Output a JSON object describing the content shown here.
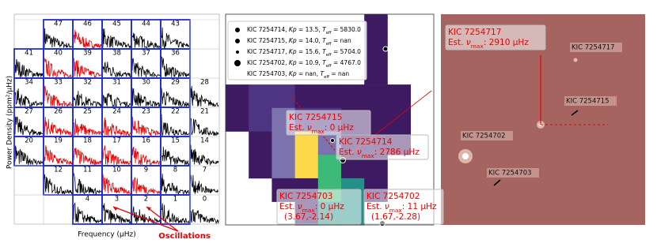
{
  "left": {
    "rows": [
      [
        null,
        "47",
        "46",
        "45",
        "44",
        "43",
        null
      ],
      [
        "41",
        "40",
        "39",
        "38",
        "37",
        "36",
        null
      ],
      [
        "34",
        "33",
        "32",
        "31",
        "30",
        "29",
        "28"
      ],
      [
        "27",
        "26",
        "25",
        "24",
        "23",
        "22",
        "21"
      ],
      [
        "20",
        "19",
        "18",
        "17",
        "16",
        "15",
        "14"
      ],
      [
        null,
        "12",
        "11",
        "10",
        "9",
        "8",
        "7"
      ],
      [
        null,
        null,
        "4",
        "3",
        "2",
        "1",
        "0"
      ]
    ],
    "red_cells": [
      "46",
      "40",
      "39",
      "33",
      "26",
      "25",
      "24",
      "23",
      "19",
      "18",
      "17",
      "16",
      "10",
      "9"
    ],
    "ylabel": "Power Density (ppm²/μHz)",
    "xlabel": "Frequency (μHz)",
    "annotation": "Oscillations"
  },
  "middle": {
    "legend": [
      [
        {
          "t": "KIC 7254714, "
        },
        {
          "t": "Kp",
          "style": "italic"
        },
        {
          "t": " = 13.5, "
        },
        {
          "t": "T",
          "style": "italic"
        },
        {
          "t": "eff",
          "style": "sub"
        },
        {
          "t": " = 5830.0"
        }
      ],
      [
        {
          "t": "KIC 7254715, "
        },
        {
          "t": "Kp",
          "style": "italic"
        },
        {
          "t": " = 14.0, "
        },
        {
          "t": "T",
          "style": "italic"
        },
        {
          "t": "eff",
          "style": "sub"
        },
        {
          "t": " = nan"
        }
      ],
      [
        {
          "t": "KIC 7254717, "
        },
        {
          "t": "Kp",
          "style": "italic"
        },
        {
          "t": " = 15.6, "
        },
        {
          "t": "T",
          "style": "italic"
        },
        {
          "t": "eff",
          "style": "sub"
        },
        {
          "t": " = 5704.0"
        }
      ],
      [
        {
          "t": "KIC 7254702, "
        },
        {
          "t": "Kp",
          "style": "italic"
        },
        {
          "t": " = 10.9, "
        },
        {
          "t": "T",
          "style": "italic"
        },
        {
          "t": "eff",
          "style": "sub"
        },
        {
          "t": " = 4767.0"
        }
      ],
      [
        {
          "t": "KIC 7254703, "
        },
        {
          "t": "Kp",
          "style": "italic"
        },
        {
          "t": " = nan, "
        },
        {
          "t": "T",
          "style": "italic"
        },
        {
          "t": "eff",
          "style": "sub"
        },
        {
          "t": " = nan"
        }
      ]
    ],
    "annotations": [
      {
        "lines": [
          [
            {
              "t": "KIC 7254717"
            }
          ],
          [
            {
              "t": "Est. "
            },
            {
              "t": "ν",
              "style": "italic"
            },
            {
              "t": "max",
              "style": "sub"
            },
            {
              "t": ": 2910 μHz"
            }
          ]
        ]
      },
      {
        "lines": [
          [
            {
              "t": "KIC 7254715"
            }
          ],
          [
            {
              "t": "Est. "
            },
            {
              "t": "ν",
              "style": "italic"
            },
            {
              "t": "max",
              "style": "sub"
            },
            {
              "t": ": 0 μHz"
            }
          ]
        ]
      },
      {
        "lines": [
          [
            {
              "t": "KIC 7254714"
            }
          ],
          [
            {
              "t": "Est. "
            },
            {
              "t": "ν",
              "style": "italic"
            },
            {
              "t": "max",
              "style": "sub"
            },
            {
              "t": ": 2786 μHz"
            }
          ]
        ]
      },
      {
        "lines": [
          [
            {
              "t": "KIC 7254703"
            }
          ],
          [
            {
              "t": "Est. "
            },
            {
              "t": "ν",
              "style": "italic"
            },
            {
              "t": "max",
              "style": "sub"
            },
            {
              "t": ": 0 μHz"
            }
          ],
          [
            {
              "t": "(3.67,-2.14)"
            }
          ]
        ]
      },
      {
        "lines": [
          [
            {
              "t": "KIC 7254702"
            }
          ],
          [
            {
              "t": "Est. "
            },
            {
              "t": "ν",
              "style": "italic"
            },
            {
              "t": "max",
              "style": "sub"
            },
            {
              "t": ": 11 μHz"
            }
          ],
          [
            {
              "t": "(1.67,-2.28)"
            }
          ]
        ]
      }
    ]
  },
  "right": {
    "labels": [
      "KIC 7254717",
      "KIC 7254715",
      "KIC 7254702",
      "KIC 7254703"
    ]
  }
}
